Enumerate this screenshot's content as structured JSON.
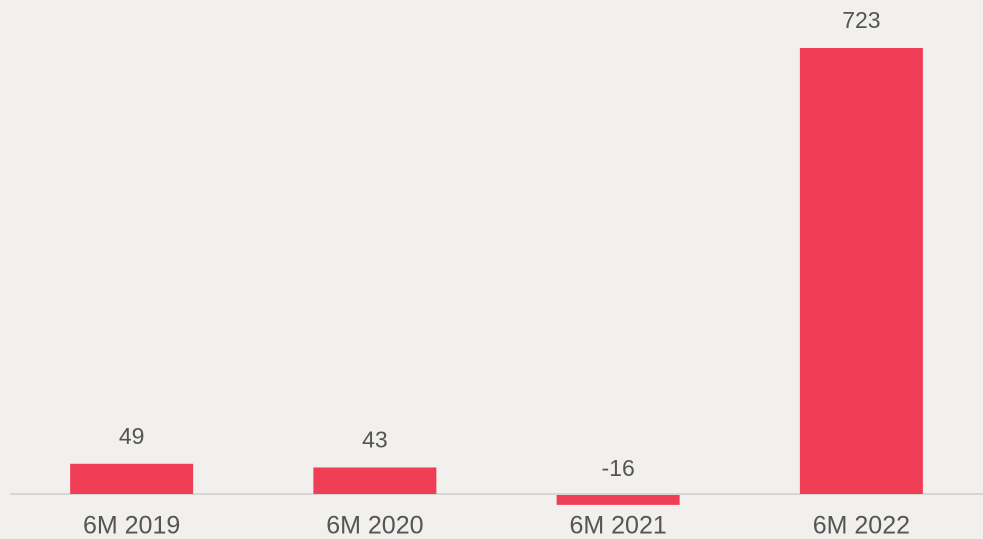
{
  "chart_data": {
    "type": "bar",
    "categories": [
      "6M 2019",
      "6M 2020",
      "6M 2021",
      "6M 2022"
    ],
    "values": [
      49,
      43,
      -16,
      723
    ],
    "color": "#ef3e55"
  }
}
